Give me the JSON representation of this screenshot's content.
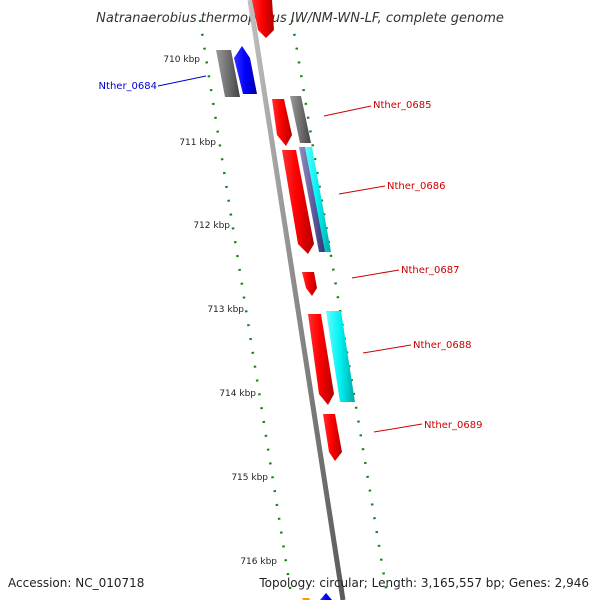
{
  "title": "Natranaerobius thermophilus JW/NM-WN-LF, complete genome",
  "ticks": [
    "710 kbp",
    "711 kbp",
    "712 kbp",
    "713 kbp",
    "714 kbp",
    "715 kbp",
    "716 kbp"
  ],
  "genes": [
    {
      "label": "Nther_0684",
      "color": "#0000cc"
    },
    {
      "label": "Nther_0685",
      "color": "#cc0000"
    },
    {
      "label": "Nther_0686",
      "color": "#cc0000"
    },
    {
      "label": "Nther_0687",
      "color": "#cc0000"
    },
    {
      "label": "Nther_0688",
      "color": "#cc0000"
    },
    {
      "label": "Nther_0689",
      "color": "#cc0000"
    }
  ],
  "footer": {
    "accession": "Accession: NC_010718",
    "topology": "Topology: circular; Length: 3,165,557 bp; Genes: 2,946"
  }
}
